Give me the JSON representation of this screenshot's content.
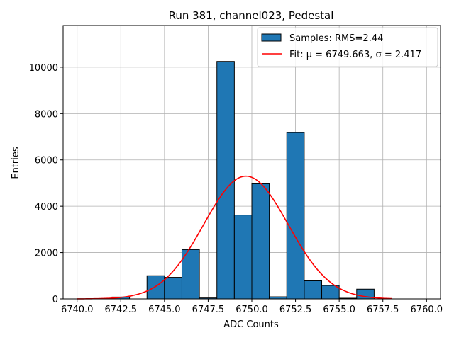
{
  "chart_data": {
    "type": "bar",
    "title": "Run 381, channel023, Pedestal",
    "xlabel": "ADC Counts",
    "ylabel": "Entries",
    "xlim": [
      6739.2,
      6760.8
    ],
    "ylim": [
      0,
      11800
    ],
    "xticks": [
      6740.0,
      6742.5,
      6745.0,
      6747.5,
      6750.0,
      6752.5,
      6755.0,
      6757.5,
      6760.0
    ],
    "xtick_labels": [
      "6740.0",
      "6742.5",
      "6745.0",
      "6747.5",
      "6750.0",
      "6752.5",
      "6755.0",
      "6757.5",
      "6760.0"
    ],
    "yticks": [
      0,
      2000,
      4000,
      6000,
      8000,
      10000
    ],
    "ytick_labels": [
      "0",
      "2000",
      "4000",
      "6000",
      "8000",
      "10000"
    ],
    "grid": true,
    "legend_position": "top-right",
    "series": [
      {
        "name": "Samples: RMS=2.44",
        "kind": "histogram",
        "color": "#1f77b4",
        "edgecolor": "#000000",
        "bin_edges": [
          6740.0,
          6741.0,
          6742.0,
          6743.0,
          6744.0,
          6745.0,
          6746.0,
          6747.0,
          6748.0,
          6749.0,
          6750.0,
          6751.0,
          6752.0,
          6753.0,
          6754.0,
          6755.0,
          6756.0,
          6757.0,
          6758.0
        ],
        "counts": [
          0,
          0,
          80,
          0,
          1000,
          930,
          2130,
          40,
          10250,
          3620,
          4970,
          90,
          7180,
          780,
          580,
          30,
          420,
          0
        ]
      },
      {
        "name": "Fit: μ = 6749.663, σ = 2.417",
        "kind": "gaussian",
        "color": "#ff0000",
        "mu": 6749.663,
        "sigma": 2.417,
        "amplitude": 5300,
        "x_range": [
          6740.0,
          6758.0
        ]
      }
    ]
  }
}
